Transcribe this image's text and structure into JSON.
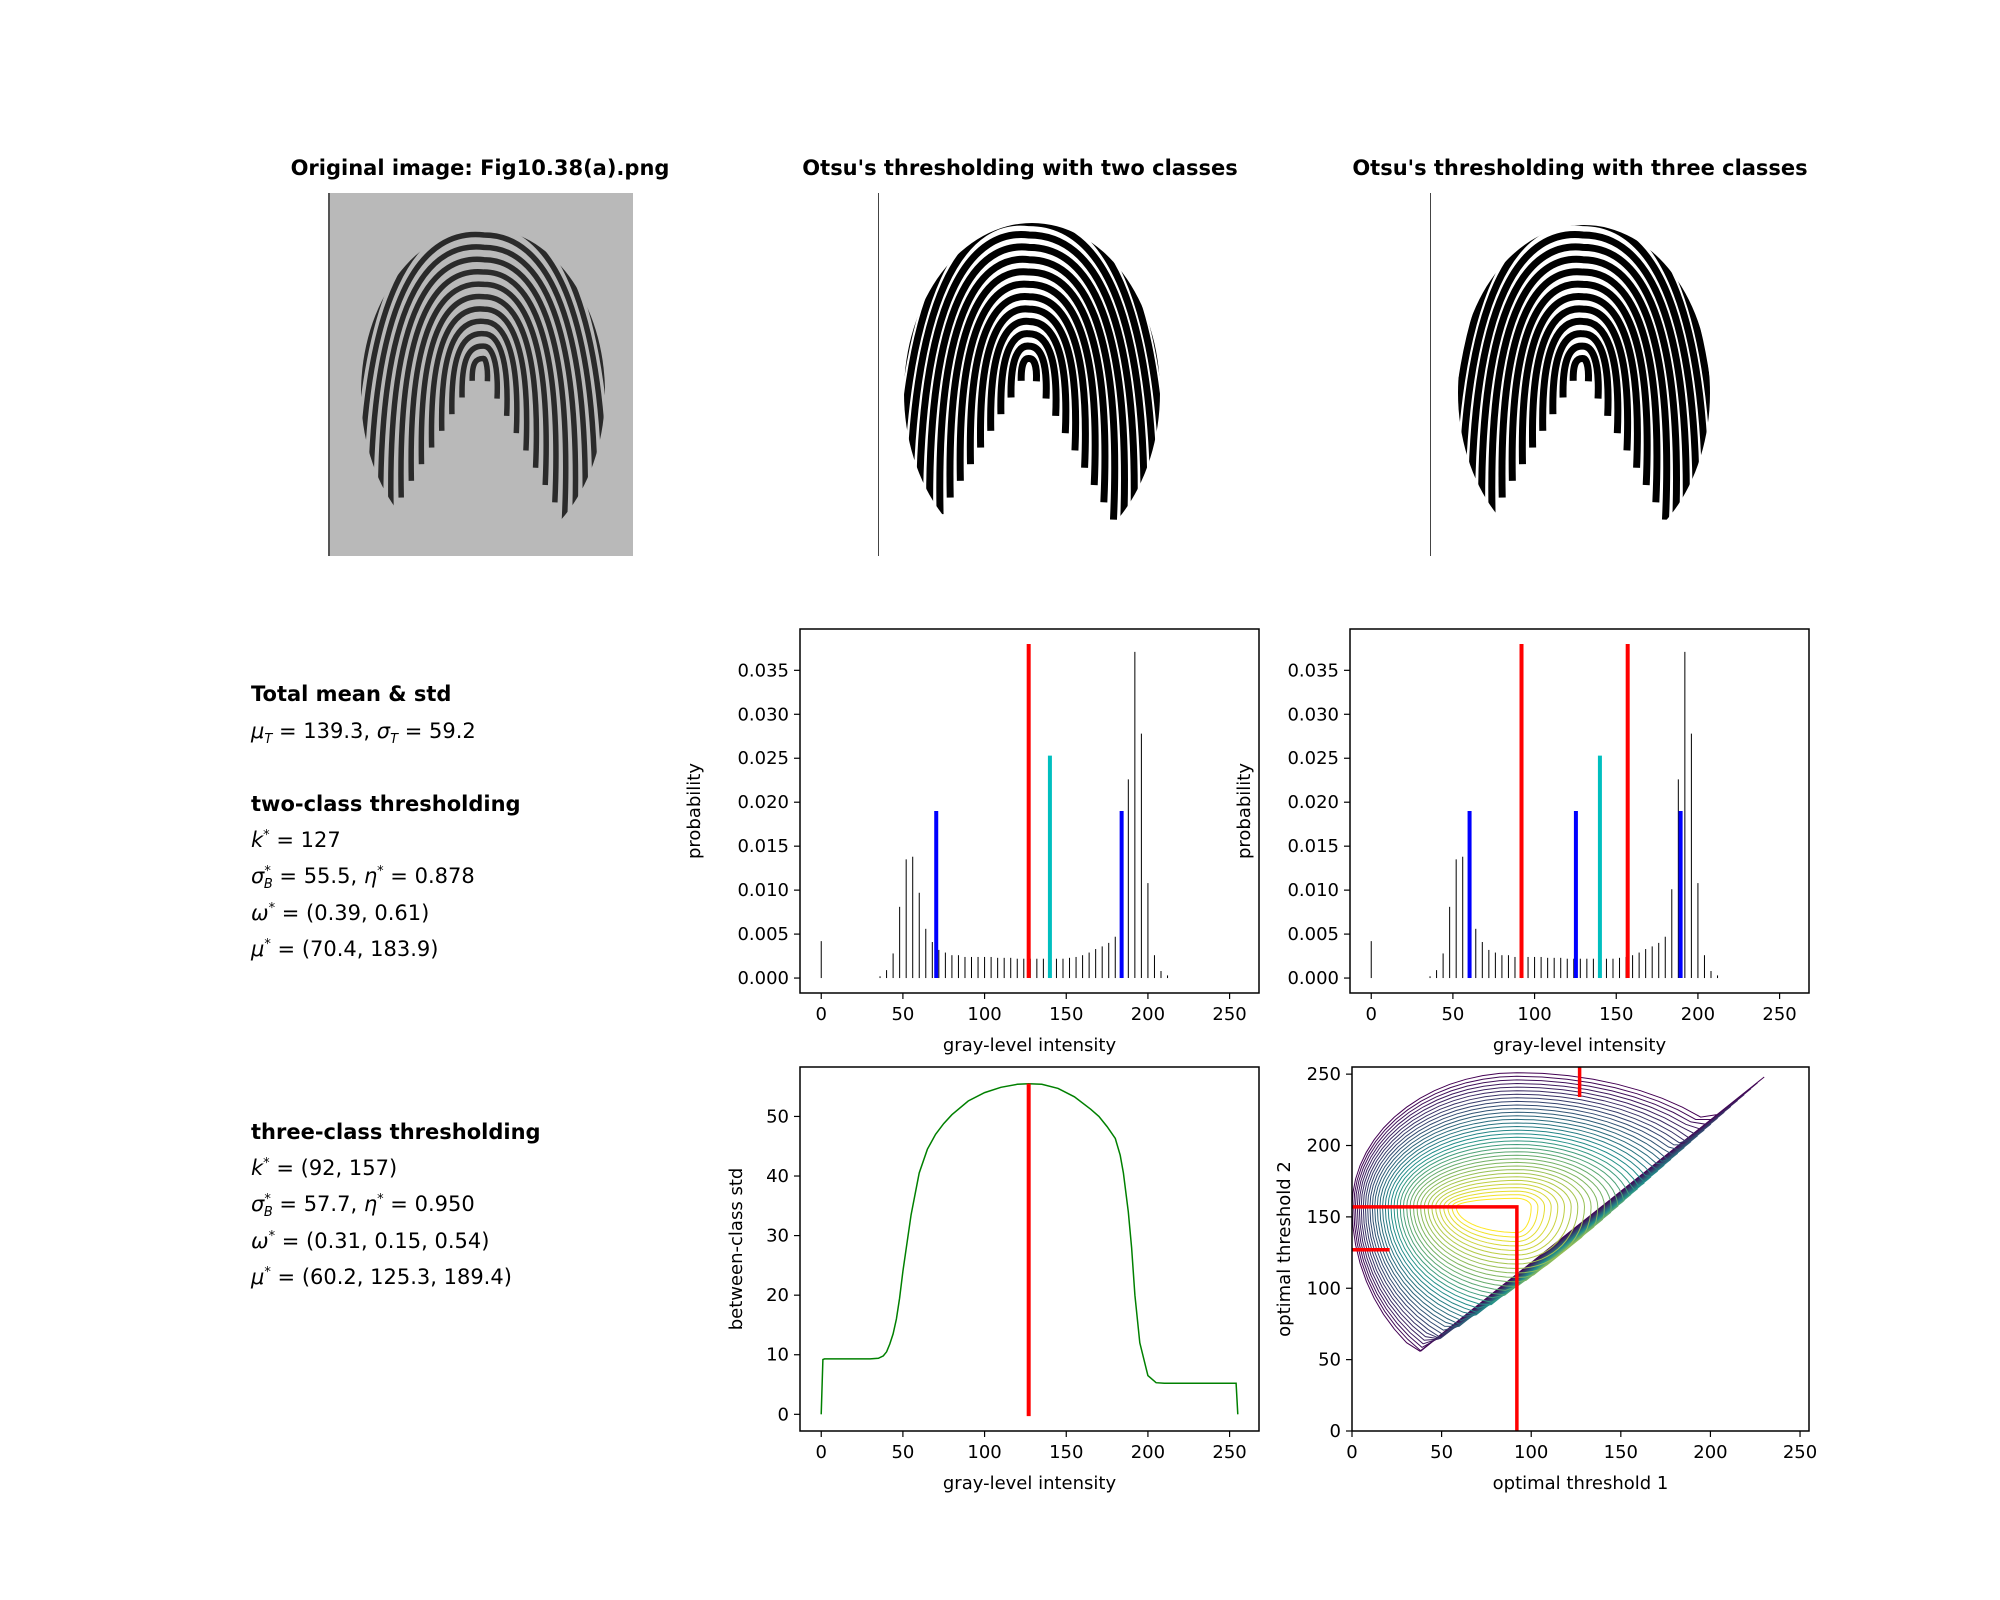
{
  "titles": {
    "original": "Original image: Fig10.38(a).png",
    "two_class": "Otsu's thresholding with two classes",
    "three_class": "Otsu's thresholding with three classes"
  },
  "stats": {
    "total_heading": "Total mean & std",
    "mu_T": "139.3",
    "sigma_T": "59.2",
    "two_heading": "two-class thresholding",
    "two_k": "127",
    "two_sigmaB": "55.5",
    "two_eta": "0.878",
    "two_omega": "(0.39, 0.61)",
    "two_mu": "(70.4, 183.9)",
    "three_heading": "three-class thresholding",
    "three_k": "(92, 157)",
    "three_sigmaB": "57.7",
    "three_eta": "0.950",
    "three_omega": "(0.31, 0.15, 0.54)",
    "three_mu": "(60.2, 125.3, 189.4)"
  },
  "colors": {
    "threshold": "#ff0000",
    "class_mean": "#0000ff",
    "global_mean": "#00bfbf",
    "curve": "#008000",
    "contour_low": "#440154",
    "contour_high": "#fde725"
  },
  "chart_data": [
    {
      "type": "bar",
      "id": "hist_two",
      "xlabel": "gray-level intensity",
      "ylabel": "probability",
      "xlim": [
        -13,
        268
      ],
      "ylim": [
        -0.0017,
        0.0397
      ],
      "xticks": [
        0,
        50,
        100,
        150,
        200,
        250
      ],
      "yticks": [
        "0.000",
        "0.005",
        "0.010",
        "0.015",
        "0.020",
        "0.025",
        "0.030",
        "0.035"
      ],
      "histogram": {
        "x": [
          0,
          36,
          40,
          44,
          48,
          52,
          56,
          60,
          64,
          68,
          72,
          76,
          80,
          84,
          88,
          92,
          96,
          100,
          104,
          108,
          112,
          116,
          120,
          124,
          128,
          132,
          136,
          140,
          144,
          148,
          152,
          156,
          160,
          164,
          168,
          172,
          176,
          180,
          184,
          188,
          192,
          196,
          200,
          204,
          208,
          212
        ],
        "y": [
          0.0042,
          0.0002,
          0.0009,
          0.0028,
          0.0081,
          0.0135,
          0.0138,
          0.0097,
          0.0056,
          0.0041,
          0.0032,
          0.0029,
          0.0026,
          0.0026,
          0.0024,
          0.0024,
          0.0024,
          0.0024,
          0.0024,
          0.0023,
          0.0023,
          0.0023,
          0.0022,
          0.0022,
          0.0022,
          0.0022,
          0.0022,
          0.0022,
          0.0022,
          0.0022,
          0.0023,
          0.0024,
          0.0026,
          0.0029,
          0.0033,
          0.0036,
          0.004,
          0.0047,
          0.0101,
          0.0226,
          0.0371,
          0.0278,
          0.0108,
          0.0026,
          0.0008,
          0.0003
        ]
      },
      "markers": [
        {
          "x": 127,
          "height": 0.038,
          "role": "threshold"
        },
        {
          "x": 140,
          "height": 0.0253,
          "role": "global_mean"
        },
        {
          "x": 70.4,
          "height": 0.019,
          "role": "class_mean"
        },
        {
          "x": 183.9,
          "height": 0.019,
          "role": "class_mean"
        }
      ]
    },
    {
      "type": "bar",
      "id": "hist_three",
      "xlabel": "gray-level intensity",
      "ylabel": "probability",
      "xlim": [
        -13,
        268
      ],
      "ylim": [
        -0.0017,
        0.0397
      ],
      "xticks": [
        0,
        50,
        100,
        150,
        200,
        250
      ],
      "yticks": [
        "0.000",
        "0.005",
        "0.010",
        "0.015",
        "0.020",
        "0.025",
        "0.030",
        "0.035"
      ],
      "markers": [
        {
          "x": 92,
          "height": 0.038,
          "role": "threshold"
        },
        {
          "x": 157,
          "height": 0.038,
          "role": "threshold"
        },
        {
          "x": 140,
          "height": 0.0253,
          "role": "global_mean"
        },
        {
          "x": 60.2,
          "height": 0.019,
          "role": "class_mean"
        },
        {
          "x": 125.3,
          "height": 0.019,
          "role": "class_mean"
        },
        {
          "x": 189.4,
          "height": 0.019,
          "role": "class_mean"
        }
      ]
    },
    {
      "type": "line",
      "id": "between_class",
      "xlabel": "gray-level intensity",
      "ylabel": "between-class std",
      "xlim": [
        -13,
        268
      ],
      "ylim": [
        -2.8,
        58.3
      ],
      "xticks": [
        0,
        50,
        100,
        150,
        200,
        250
      ],
      "yticks": [
        0,
        10,
        20,
        30,
        40,
        50
      ],
      "x": [
        0,
        1,
        2,
        10,
        20,
        30,
        35,
        38,
        40,
        42,
        44,
        46,
        48,
        50,
        55,
        60,
        65,
        70,
        75,
        80,
        90,
        100,
        110,
        120,
        127,
        135,
        145,
        155,
        165,
        170,
        175,
        180,
        183,
        185,
        188,
        190,
        192,
        195,
        200,
        205,
        210,
        220,
        230,
        240,
        250,
        254,
        255
      ],
      "y": [
        0,
        9.2,
        9.3,
        9.3,
        9.3,
        9.3,
        9.4,
        9.8,
        10.5,
        11.8,
        13.5,
        16,
        19.5,
        24,
        33.5,
        40.5,
        44.5,
        47,
        48.8,
        50.3,
        52.6,
        54,
        54.9,
        55.4,
        55.5,
        55.4,
        54.7,
        53.3,
        51.2,
        50,
        48.3,
        46.3,
        43.5,
        40.5,
        34,
        28,
        20,
        12,
        6.5,
        5.3,
        5.2,
        5.2,
        5.2,
        5.2,
        5.2,
        5.2,
        0
      ],
      "marker": {
        "x": 127,
        "role": "threshold"
      }
    },
    {
      "type": "contour",
      "id": "three_class_map",
      "xlabel": "optimal threshold 1",
      "ylabel": "optimal threshold 2",
      "xlim": [
        0,
        255
      ],
      "ylim": [
        0,
        255
      ],
      "xticks": [
        0,
        50,
        100,
        150,
        200,
        250
      ],
      "yticks": [
        0,
        50,
        100,
        150,
        200,
        250
      ],
      "optimum": [
        92,
        157
      ],
      "levels": 36,
      "two_class_threshold": 127
    }
  ]
}
